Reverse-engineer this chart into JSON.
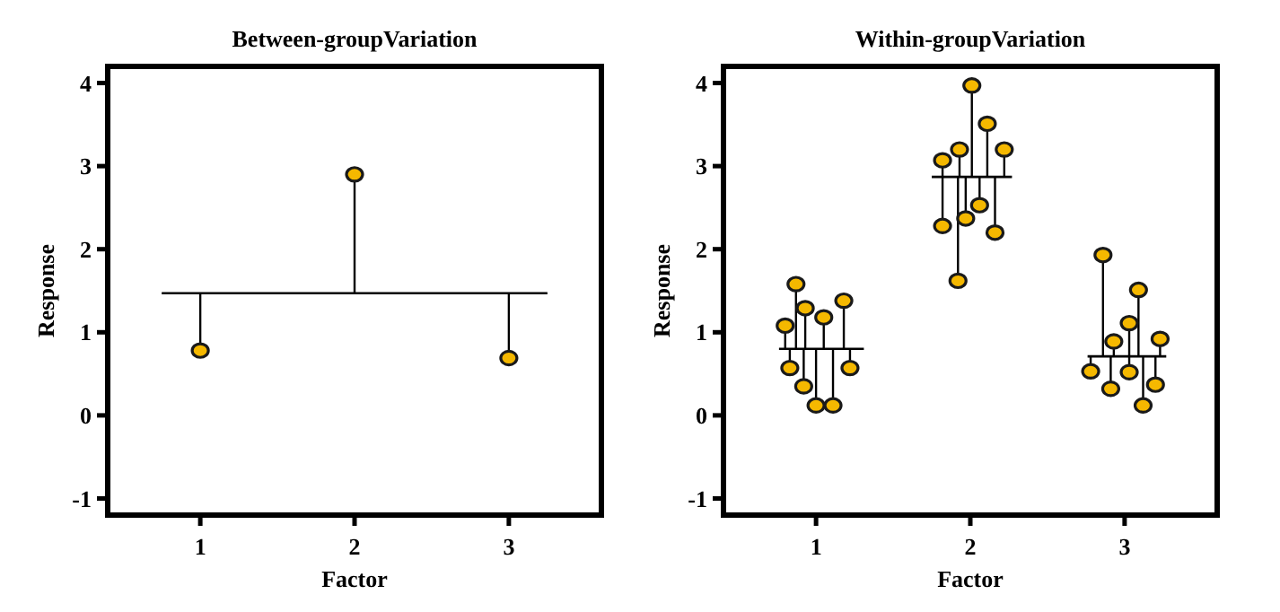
{
  "chart_data": [
    {
      "type": "scatter",
      "title": "Between-groupVariation",
      "xlabel": "Factor",
      "ylabel": "Response",
      "xlim": [
        0.4,
        3.6
      ],
      "ylim": [
        -1.2,
        4.2
      ],
      "xticks": [
        1,
        2,
        3
      ],
      "yticks": [
        -1,
        0,
        1,
        2,
        3,
        4
      ],
      "marker": "circle",
      "series": [
        {
          "type": "line",
          "marker": "none",
          "color": "#000000",
          "x": [
            0.75,
            3.25
          ],
          "values": [
            1.47,
            1.47
          ]
        },
        {
          "color": "#f5b800",
          "x": [
            1,
            2,
            3
          ],
          "values": [
            0.78,
            2.9,
            0.69
          ],
          "errors": [
            [
              0.78,
              1.47
            ],
            [
              1.47,
              2.9
            ],
            [
              0.69,
              1.47
            ]
          ]
        }
      ]
    },
    {
      "type": "scatter",
      "title": "Within-groupVariation",
      "xlabel": "Factor",
      "ylabel": "Response",
      "xlim": [
        0.4,
        3.6
      ],
      "ylim": [
        -1.2,
        4.2
      ],
      "xticks": [
        1,
        2,
        3
      ],
      "yticks": [
        -1,
        0,
        1,
        2,
        3,
        4
      ],
      "marker": "circle",
      "series": [
        {
          "type": "line",
          "marker": "none",
          "color": "#000000",
          "x": [
            0.76,
            1.31
          ],
          "values": [
            0.8,
            0.8
          ]
        },
        {
          "type": "line",
          "marker": "none",
          "color": "#000000",
          "x": [
            1.75,
            2.27
          ],
          "values": [
            2.87,
            2.87
          ]
        },
        {
          "type": "line",
          "marker": "none",
          "color": "#000000",
          "x": [
            2.76,
            3.27
          ],
          "values": [
            0.71,
            0.71
          ]
        },
        {
          "color": "#f5b800",
          "x": [
            0.8,
            0.83,
            0.87,
            0.92,
            0.93,
            1.0,
            1.05,
            1.11,
            1.18,
            1.22
          ],
          "values": [
            1.08,
            0.57,
            1.58,
            0.35,
            1.29,
            0.12,
            1.18,
            0.12,
            1.38,
            0.57
          ],
          "errors": [
            [
              0.8,
              1.08
            ],
            [
              0.57,
              0.8
            ],
            [
              0.8,
              1.58
            ],
            [
              0.35,
              0.8
            ],
            [
              0.8,
              1.29
            ],
            [
              0.12,
              0.8
            ],
            [
              0.8,
              1.18
            ],
            [
              0.12,
              0.8
            ],
            [
              0.8,
              1.38
            ],
            [
              0.57,
              0.8
            ]
          ]
        },
        {
          "color": "#f5b800",
          "x": [
            1.82,
            1.82,
            1.92,
            1.93,
            1.97,
            2.01,
            2.06,
            2.11,
            2.16,
            2.22
          ],
          "values": [
            3.07,
            2.28,
            1.62,
            3.2,
            2.37,
            3.97,
            2.53,
            3.51,
            2.2,
            3.2
          ],
          "errors": [
            [
              2.87,
              3.07
            ],
            [
              2.28,
              2.87
            ],
            [
              1.62,
              2.87
            ],
            [
              2.87,
              3.2
            ],
            [
              2.37,
              2.87
            ],
            [
              2.87,
              3.97
            ],
            [
              2.53,
              2.87
            ],
            [
              2.87,
              3.51
            ],
            [
              2.2,
              2.87
            ],
            [
              2.87,
              3.2
            ]
          ]
        },
        {
          "color": "#f5b800",
          "x": [
            2.78,
            2.86,
            2.91,
            2.93,
            3.03,
            3.03,
            3.09,
            3.12,
            3.2,
            3.23
          ],
          "values": [
            0.53,
            1.93,
            0.32,
            0.89,
            0.52,
            1.11,
            1.51,
            0.12,
            0.37,
            0.92
          ],
          "errors": [
            [
              0.53,
              0.71
            ],
            [
              0.71,
              1.93
            ],
            [
              0.32,
              0.71
            ],
            [
              0.71,
              0.89
            ],
            [
              0.52,
              0.71
            ],
            [
              0.71,
              1.11
            ],
            [
              0.71,
              1.51
            ],
            [
              0.12,
              0.71
            ],
            [
              0.37,
              0.71
            ],
            [
              0.71,
              0.92
            ]
          ]
        }
      ]
    }
  ]
}
